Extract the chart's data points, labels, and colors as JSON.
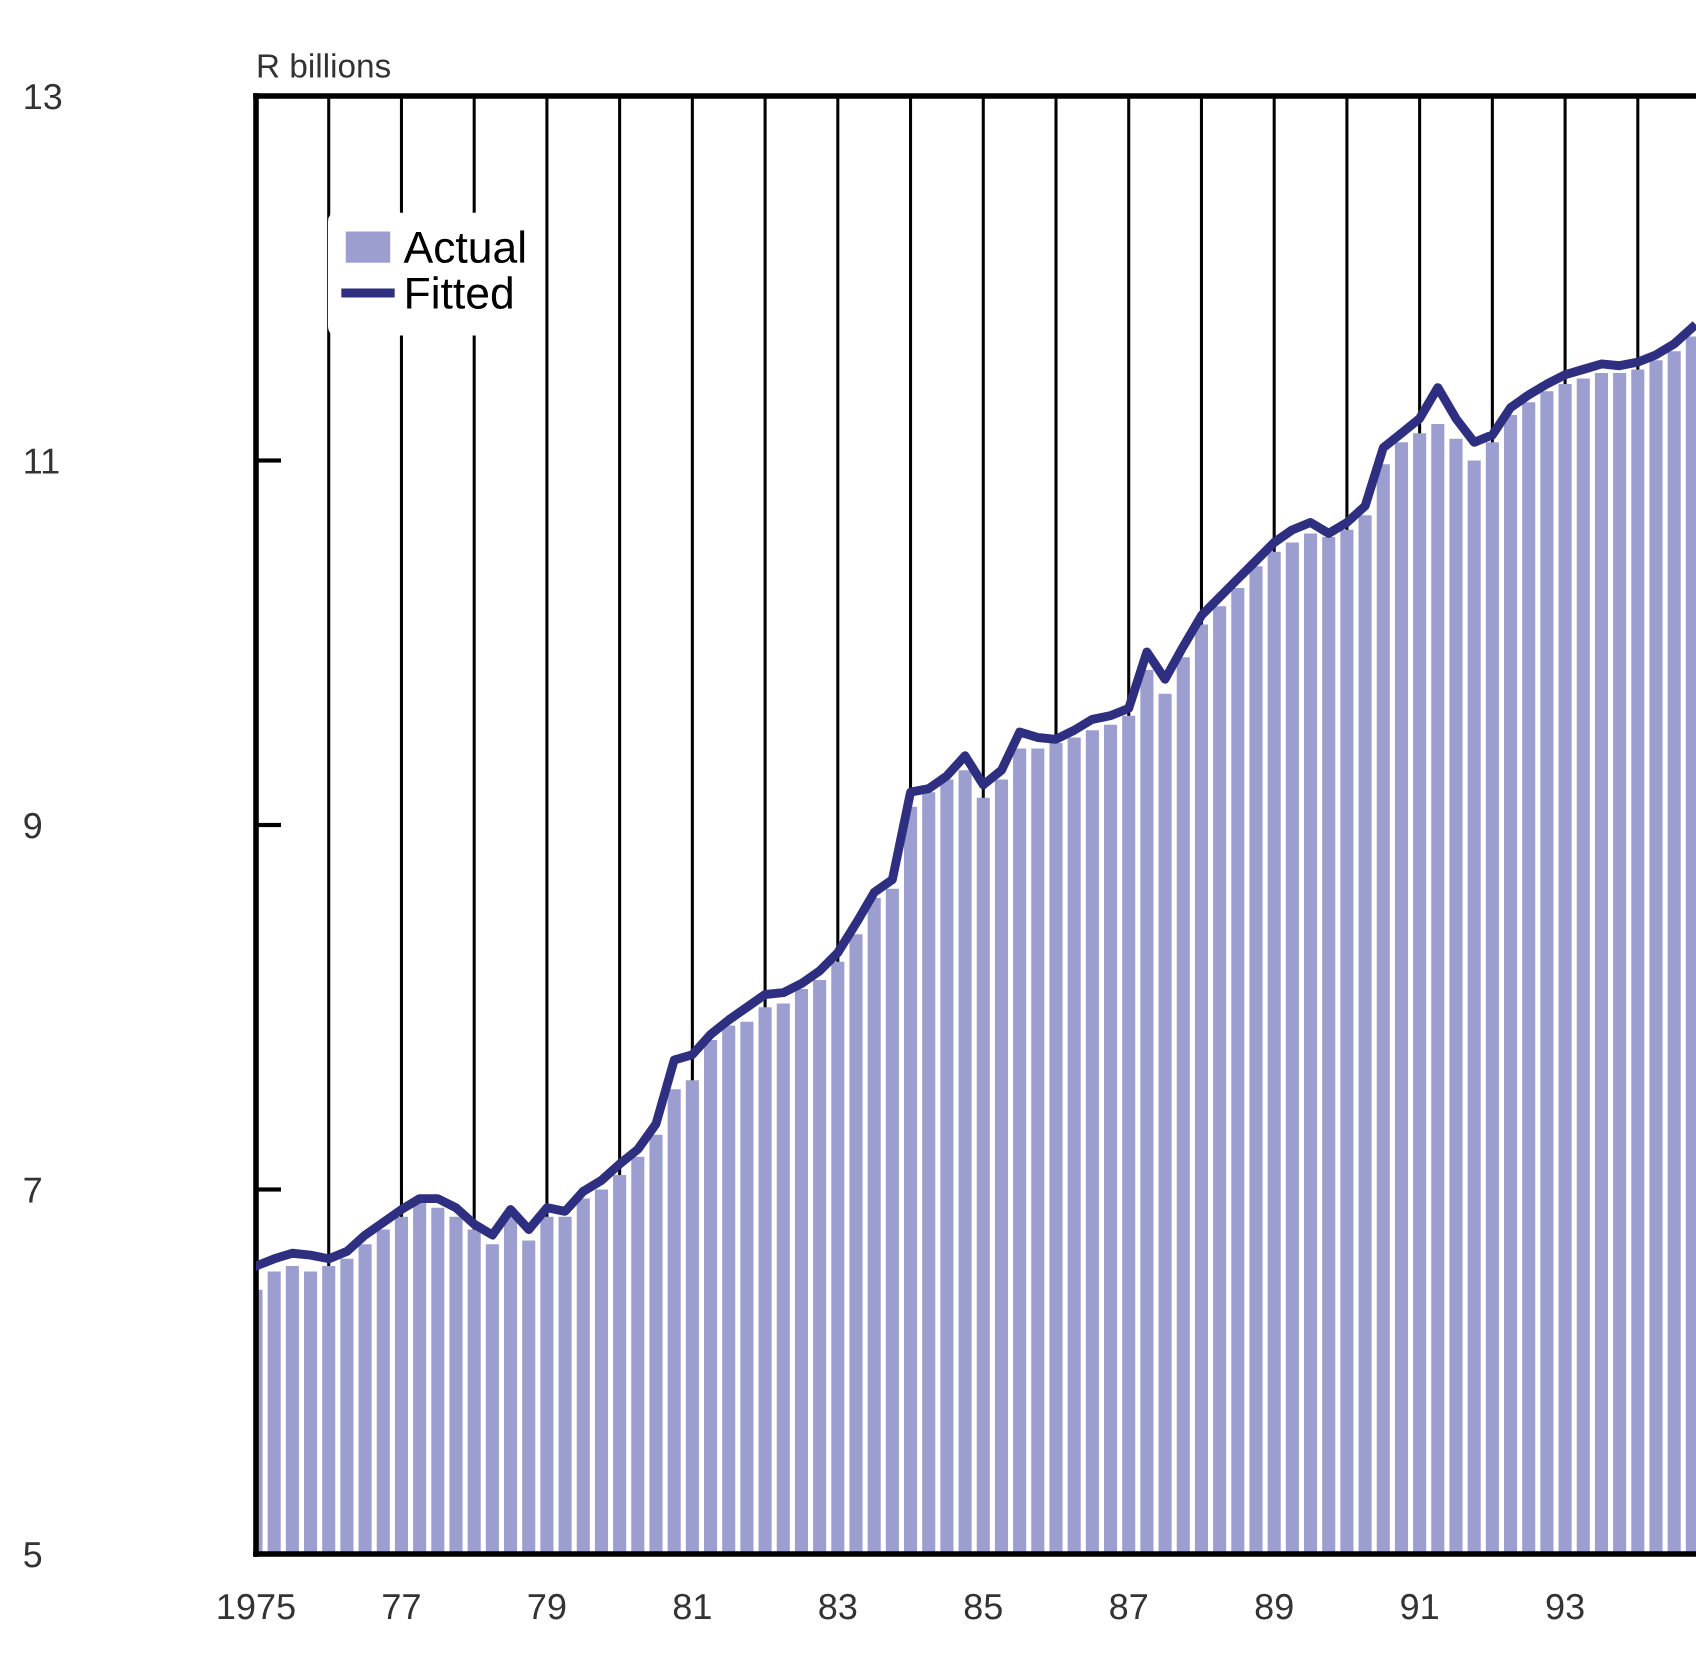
{
  "chart_data": {
    "type": "bar",
    "ylabel": "R billions",
    "x": [
      1975,
      1975.25,
      1975.5,
      1975.75,
      1976,
      1976.25,
      1976.5,
      1976.75,
      1977,
      1977.25,
      1977.5,
      1977.75,
      1978,
      1978.25,
      1978.5,
      1978.75,
      1979,
      1979.25,
      1979.5,
      1979.75,
      1980,
      1980.25,
      1980.5,
      1980.75,
      1981,
      1981.25,
      1981.5,
      1981.75,
      1982,
      1982.25,
      1982.5,
      1982.75,
      1983,
      1983.25,
      1983.5,
      1983.75,
      1984,
      1984.25,
      1984.5,
      1984.75,
      1985,
      1985.25,
      1985.5,
      1985.75,
      1986,
      1986.25,
      1986.5,
      1986.75,
      1987,
      1987.25,
      1987.5,
      1987.75,
      1988,
      1988.25,
      1988.5,
      1988.75,
      1989,
      1989.25,
      1989.5,
      1989.75,
      1990,
      1990.25,
      1990.5,
      1990.75,
      1991,
      1991.25,
      1991.5,
      1991.75,
      1992,
      1992.25,
      1992.5,
      1992.75,
      1993,
      1993.25,
      1993.5,
      1993.75,
      1994,
      1994.25,
      1994.5,
      1994.75
    ],
    "series": [
      {
        "name": "Actual",
        "color": "#9c9ecf",
        "values": [
          6.45,
          6.55,
          6.58,
          6.55,
          6.58,
          6.62,
          6.7,
          6.78,
          6.85,
          6.93,
          6.9,
          6.85,
          6.78,
          6.7,
          6.85,
          6.72,
          6.85,
          6.85,
          6.95,
          7.0,
          7.08,
          7.18,
          7.3,
          7.55,
          7.6,
          7.82,
          7.9,
          7.92,
          8.0,
          8.02,
          8.1,
          8.15,
          8.25,
          8.4,
          8.6,
          8.65,
          9.1,
          9.18,
          9.25,
          9.3,
          9.15,
          9.25,
          9.42,
          9.42,
          9.45,
          9.48,
          9.52,
          9.55,
          9.6,
          9.85,
          9.72,
          9.92,
          10.1,
          10.2,
          10.3,
          10.42,
          10.5,
          10.55,
          10.6,
          10.58,
          10.62,
          10.7,
          10.98,
          11.1,
          11.15,
          11.2,
          11.12,
          11.0,
          11.1,
          11.25,
          11.32,
          11.38,
          11.42,
          11.45,
          11.48,
          11.48,
          11.5,
          11.55,
          11.6,
          11.68
        ]
      },
      {
        "name": "Fitted",
        "type": "line",
        "color": "#2e2f80",
        "values": [
          6.58,
          6.62,
          6.65,
          6.64,
          6.62,
          6.66,
          6.75,
          6.82,
          6.89,
          6.95,
          6.95,
          6.9,
          6.81,
          6.75,
          6.89,
          6.78,
          6.9,
          6.88,
          6.99,
          7.05,
          7.14,
          7.22,
          7.36,
          7.71,
          7.74,
          7.85,
          7.93,
          8.0,
          8.07,
          8.08,
          8.13,
          8.2,
          8.3,
          8.46,
          8.63,
          8.7,
          9.18,
          9.2,
          9.27,
          9.38,
          9.22,
          9.3,
          9.51,
          9.48,
          9.47,
          9.52,
          9.58,
          9.6,
          9.64,
          9.95,
          9.8,
          9.98,
          10.15,
          10.25,
          10.35,
          10.45,
          10.55,
          10.62,
          10.66,
          10.6,
          10.66,
          10.75,
          11.07,
          11.15,
          11.23,
          11.4,
          11.23,
          11.1,
          11.14,
          11.29,
          11.36,
          11.42,
          11.47,
          11.5,
          11.53,
          11.52,
          11.54,
          11.58,
          11.64,
          11.73
        ]
      }
    ],
    "xlim": [
      1975,
      1994.8
    ],
    "xticks": [
      1975,
      {
        "value": 1976,
        "label": null
      },
      {
        "value": 1977,
        "label": "77"
      },
      {
        "value": 1978,
        "label": null
      },
      {
        "value": 1979,
        "label": "79"
      },
      {
        "value": 1980,
        "label": null
      },
      {
        "value": 1981,
        "label": "81"
      },
      {
        "value": 1982,
        "label": null
      },
      {
        "value": 1983,
        "label": "83"
      },
      {
        "value": 1984,
        "label": null
      },
      {
        "value": 1985,
        "label": "85"
      },
      {
        "value": 1986,
        "label": null
      },
      {
        "value": 1987,
        "label": "87"
      },
      {
        "value": 1988,
        "label": null
      },
      {
        "value": 1989,
        "label": "89"
      },
      {
        "value": 1990,
        "label": null
      },
      {
        "value": 1991,
        "label": "91"
      },
      {
        "value": 1992,
        "label": null
      },
      {
        "value": 1993,
        "label": "93"
      },
      {
        "value": 1994,
        "label": null
      }
    ],
    "ylim": [
      5,
      13
    ],
    "yticks": [
      5,
      7,
      9,
      11,
      13
    ],
    "grid": "x",
    "legend": "top left",
    "marker": "none",
    "line_style": "solid"
  }
}
